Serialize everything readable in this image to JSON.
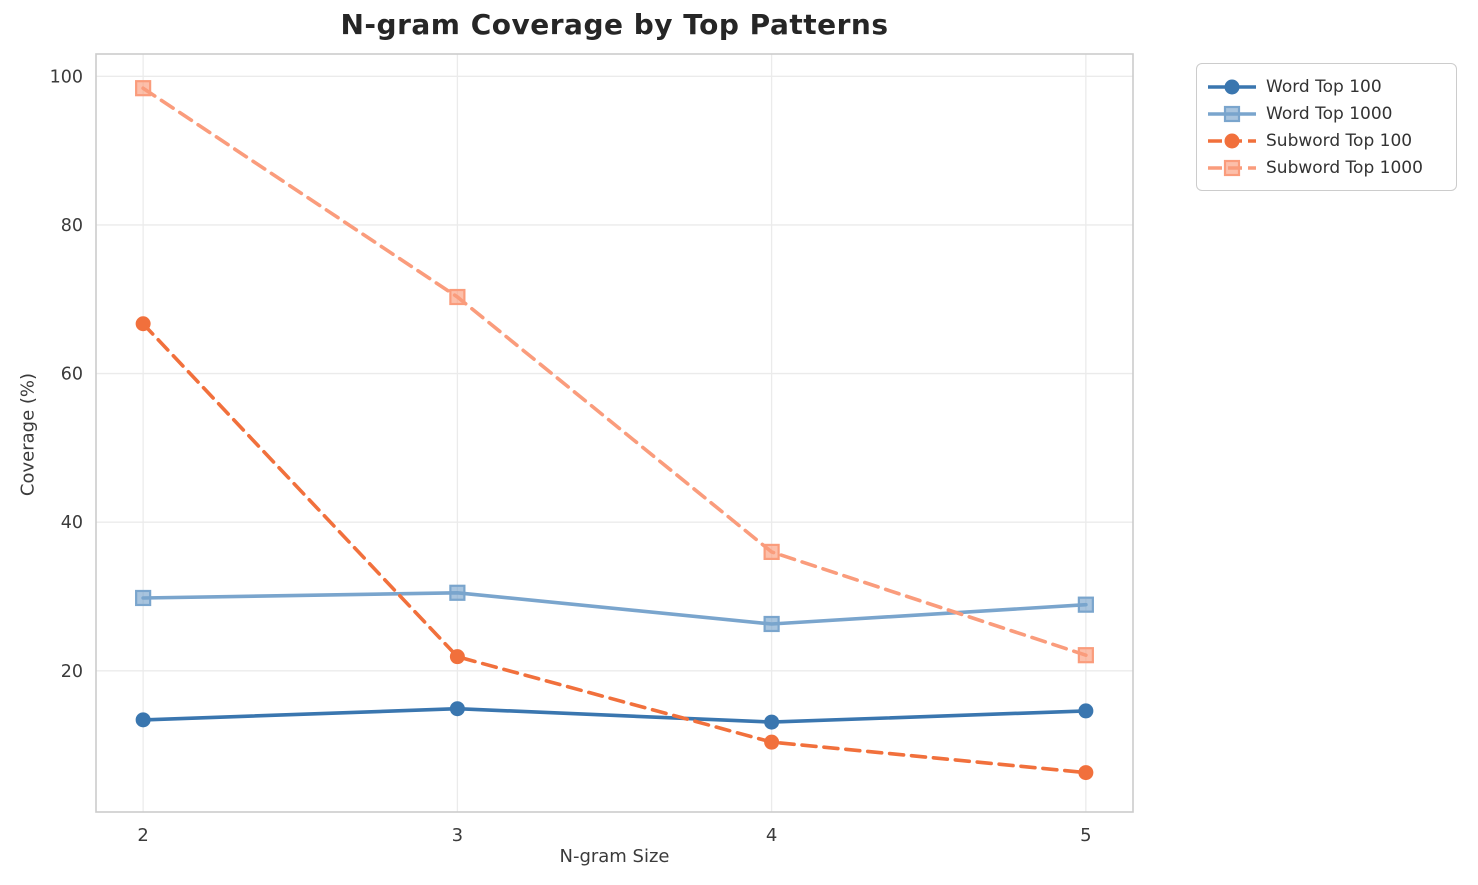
{
  "title": "N-gram Coverage by Top Patterns",
  "chart_data": {
    "type": "line",
    "title": "N-gram Coverage by Top Patterns",
    "xlabel": "N-gram Size",
    "ylabel": "Coverage (%)",
    "x": [
      2,
      3,
      4,
      5
    ],
    "xticks": [
      "2",
      "3",
      "4",
      "5"
    ],
    "yticks": [
      20,
      40,
      60,
      80,
      100
    ],
    "xlim": [
      1.85,
      5.15
    ],
    "ylim": [
      1,
      103
    ],
    "grid": true,
    "legend_position": "outside-upper-right",
    "series": [
      {
        "name": "Word Top 100",
        "values": [
          13.4,
          14.9,
          13.1,
          14.6
        ],
        "color": "#3a76af",
        "line_style": "solid",
        "marker": "circle"
      },
      {
        "name": "Word Top 1000",
        "values": [
          29.8,
          30.5,
          26.3,
          28.9
        ],
        "color": "#7aa5cd",
        "line_style": "solid",
        "marker": "square"
      },
      {
        "name": "Subword Top 100",
        "values": [
          66.7,
          21.9,
          10.4,
          6.3
        ],
        "color": "#f1703c",
        "line_style": "dashed",
        "marker": "circle"
      },
      {
        "name": "Subword Top 1000",
        "values": [
          98.4,
          70.3,
          36.0,
          22.1
        ],
        "color": "#fa9c7c",
        "line_style": "dashed",
        "marker": "square"
      }
    ],
    "style": {
      "grid_color": "#ebebeb",
      "spine_color": "#cccccc",
      "title_color": "#262626",
      "tick_color": "#3b3b3b"
    }
  }
}
